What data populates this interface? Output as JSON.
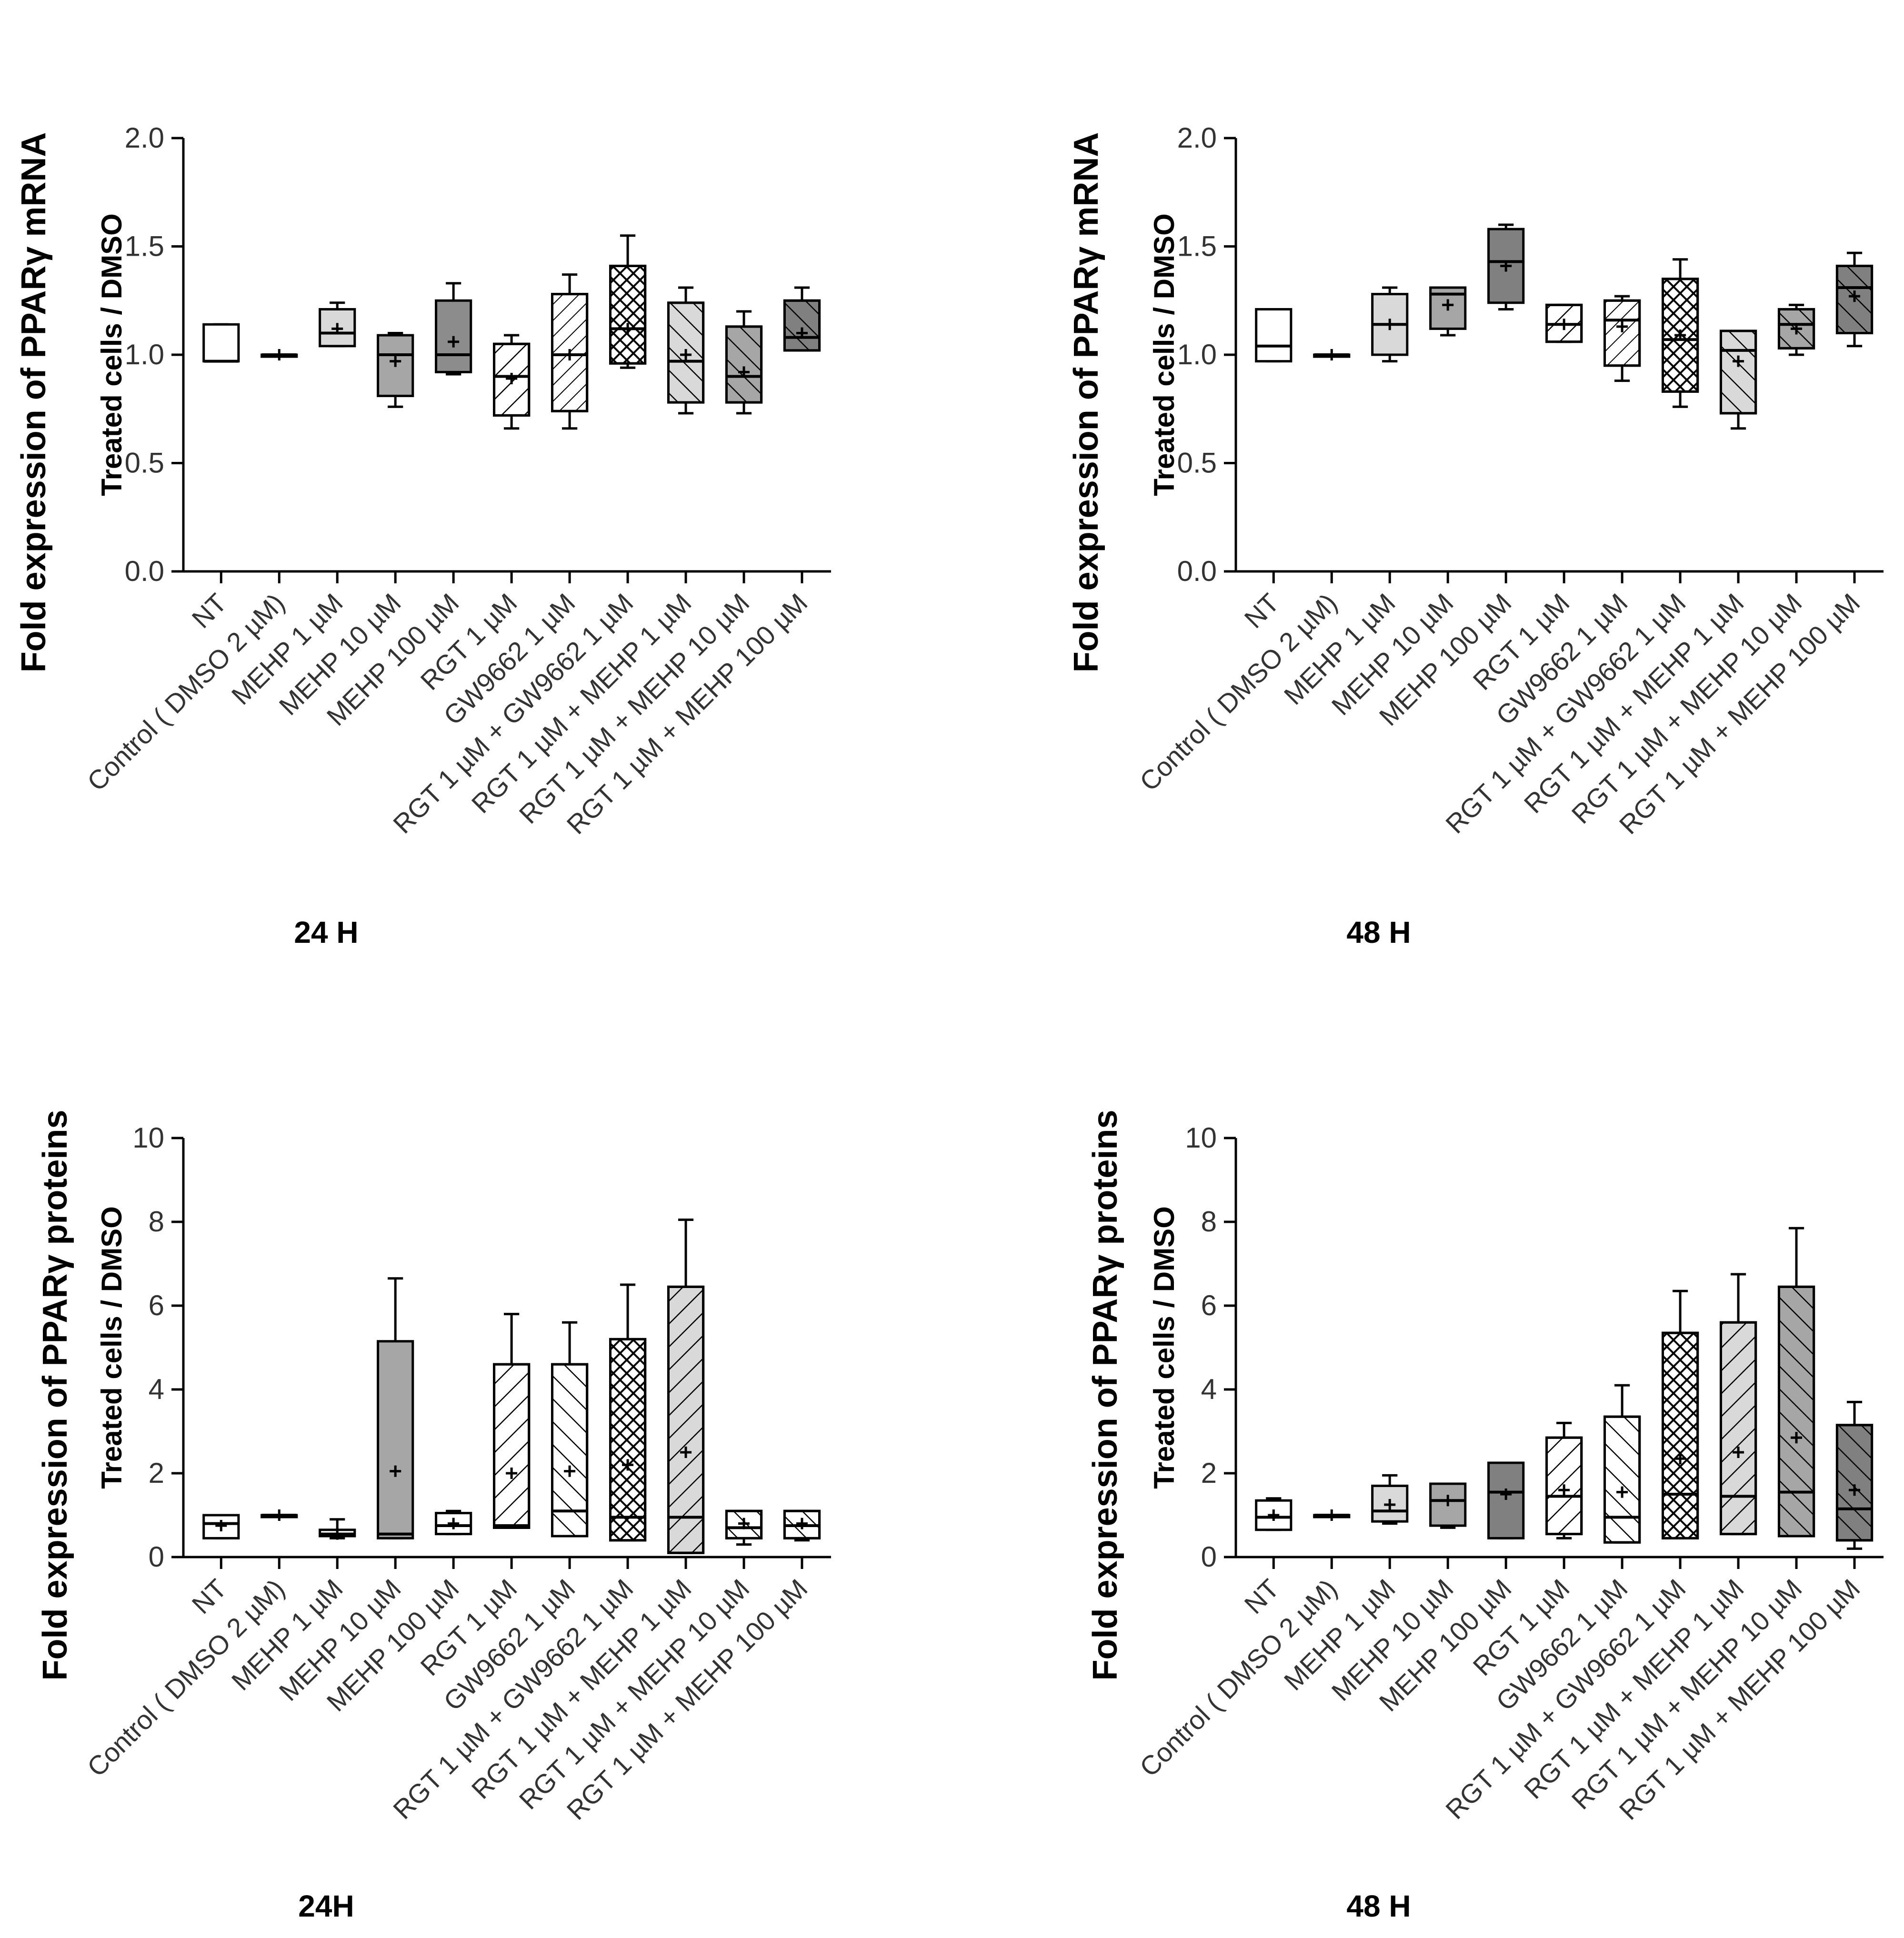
{
  "chart_data": [
    {
      "type": "box",
      "panel": "top-left",
      "ylabel": "Fold expression of PPARγ mRNA",
      "ylabel2": "Treated cells / DMSO",
      "xlabel": "24 H",
      "ylim": [
        0,
        2.0
      ],
      "yticks": [
        "0.0",
        "0.5",
        "1.0",
        "1.5",
        "2.0"
      ],
      "categories": [
        "NT",
        "Control ( DMSO 2 µM)",
        "MEHP 1 µM",
        "MEHP 10 µM",
        "MEHP 100 µM",
        "RGT 1 µM",
        "GW9662  1 µM",
        "RGT 1 µM + GW9662 1 µM",
        "RGT 1 µM + MEHP 1 µM",
        "RGT 1 µM + MEHP 10 µM",
        "RGT 1 µM + MEHP 100 µM"
      ],
      "boxes": [
        {
          "min": 0.97,
          "q1": 0.97,
          "median": 0.97,
          "q3": 1.14,
          "max": 1.14,
          "mean": null,
          "fill": "#ffffff",
          "pattern": "none"
        },
        {
          "min": 1.0,
          "q1": 1.0,
          "median": 1.0,
          "q3": 1.0,
          "max": 1.0,
          "mean": 1.0,
          "fill": "#ffffff",
          "pattern": "none"
        },
        {
          "min": 1.04,
          "q1": 1.04,
          "median": 1.1,
          "q3": 1.21,
          "max": 1.24,
          "mean": 1.12,
          "fill": "#d9d9d9",
          "pattern": "none"
        },
        {
          "min": 0.76,
          "q1": 0.81,
          "median": 1.0,
          "q3": 1.09,
          "max": 1.1,
          "mean": 0.97,
          "fill": "#a6a6a6",
          "pattern": "none"
        },
        {
          "min": 0.91,
          "q1": 0.92,
          "median": 1.0,
          "q3": 1.25,
          "max": 1.33,
          "mean": 1.06,
          "fill": "#8c8c8c",
          "pattern": "none"
        },
        {
          "min": 0.66,
          "q1": 0.72,
          "median": 0.9,
          "q3": 1.05,
          "max": 1.09,
          "mean": 0.89,
          "fill": "#ffffff",
          "pattern": "diag"
        },
        {
          "min": 0.66,
          "q1": 0.74,
          "median": 1.0,
          "q3": 1.28,
          "max": 1.37,
          "mean": 1.0,
          "fill": "#ffffff",
          "pattern": "diag-dense"
        },
        {
          "min": 0.94,
          "q1": 0.96,
          "median": 1.12,
          "q3": 1.41,
          "max": 1.55,
          "mean": 1.12,
          "fill": "#ffffff",
          "pattern": "cross"
        },
        {
          "min": 0.73,
          "q1": 0.78,
          "median": 0.97,
          "q3": 1.24,
          "max": 1.31,
          "mean": 1.0,
          "fill": "#d9d9d9",
          "pattern": "back"
        },
        {
          "min": 0.73,
          "q1": 0.78,
          "median": 0.9,
          "q3": 1.13,
          "max": 1.2,
          "mean": 0.92,
          "fill": "#a6a6a6",
          "pattern": "back"
        },
        {
          "min": 1.02,
          "q1": 1.02,
          "median": 1.08,
          "q3": 1.25,
          "max": 1.31,
          "mean": 1.1,
          "fill": "#808080",
          "pattern": "back"
        }
      ]
    },
    {
      "type": "box",
      "panel": "top-right",
      "ylabel": "Fold expression of PPARγ mRNA",
      "ylabel2": "Treated cells / DMSO",
      "xlabel": "48 H",
      "ylim": [
        0,
        2.0
      ],
      "yticks": [
        "0.0",
        "0.5",
        "1.0",
        "1.5",
        "2.0"
      ],
      "categories": [
        "NT",
        "Control ( DMSO 2 µM)",
        "MEHP 1 µM",
        "MEHP 10 µM",
        "MEHP 100 µM",
        "RGT 1 µM",
        "GW9662  1 µM",
        "RGT 1 µM + GW9662 1 µM",
        "RGT 1 µM + MEHP 1 µM",
        "RGT 1 µM + MEHP 10 µM",
        "RGT 1 µM + MEHP 100 µM"
      ],
      "boxes": [
        {
          "min": 0.97,
          "q1": 0.97,
          "median": 1.04,
          "q3": 1.21,
          "max": 1.21,
          "mean": null,
          "fill": "#ffffff",
          "pattern": "none"
        },
        {
          "min": 1.0,
          "q1": 1.0,
          "median": 1.0,
          "q3": 1.0,
          "max": 1.0,
          "mean": 1.0,
          "fill": "#ffffff",
          "pattern": "none"
        },
        {
          "min": 0.97,
          "q1": 1.0,
          "median": 1.14,
          "q3": 1.28,
          "max": 1.31,
          "mean": 1.14,
          "fill": "#d9d9d9",
          "pattern": "none"
        },
        {
          "min": 1.09,
          "q1": 1.12,
          "median": 1.28,
          "q3": 1.31,
          "max": 1.31,
          "mean": 1.23,
          "fill": "#a6a6a6",
          "pattern": "none"
        },
        {
          "min": 1.21,
          "q1": 1.24,
          "median": 1.43,
          "q3": 1.58,
          "max": 1.6,
          "mean": 1.41,
          "fill": "#808080",
          "pattern": "none"
        },
        {
          "min": 1.06,
          "q1": 1.06,
          "median": 1.14,
          "q3": 1.23,
          "max": 1.23,
          "mean": 1.14,
          "fill": "#ffffff",
          "pattern": "diag"
        },
        {
          "min": 0.88,
          "q1": 0.95,
          "median": 1.16,
          "q3": 1.25,
          "max": 1.27,
          "mean": 1.13,
          "fill": "#ffffff",
          "pattern": "diag-dense"
        },
        {
          "min": 0.76,
          "q1": 0.83,
          "median": 1.07,
          "q3": 1.35,
          "max": 1.44,
          "mean": 1.09,
          "fill": "#ffffff",
          "pattern": "cross"
        },
        {
          "min": 0.66,
          "q1": 0.73,
          "median": 1.02,
          "q3": 1.11,
          "max": 1.11,
          "mean": 0.97,
          "fill": "#d9d9d9",
          "pattern": "back"
        },
        {
          "min": 1.0,
          "q1": 1.03,
          "median": 1.14,
          "q3": 1.21,
          "max": 1.23,
          "mean": 1.12,
          "fill": "#a6a6a6",
          "pattern": "back"
        },
        {
          "min": 1.04,
          "q1": 1.1,
          "median": 1.31,
          "q3": 1.41,
          "max": 1.47,
          "mean": 1.27,
          "fill": "#808080",
          "pattern": "back"
        }
      ]
    },
    {
      "type": "box",
      "panel": "bottom-left",
      "ylabel": "Fold expression of PPARγ proteins",
      "ylabel2": "Treated cells / DMSO",
      "xlabel": "24H",
      "ylim": [
        0,
        10
      ],
      "yticks": [
        "0",
        "2",
        "4",
        "6",
        "8",
        "10"
      ],
      "categories": [
        "NT",
        "Control ( DMSO 2 µM)",
        "MEHP 1 µM",
        "MEHP 10 µM",
        "MEHP 100 µM",
        "RGT 1 µM",
        "GW9662  1 µM",
        "RGT 1 µM + GW9662 1 µM",
        "RGT 1 µM + MEHP 1 µM",
        "RGT 1 µM + MEHP 10 µM",
        "RGT 1 µM + MEHP 100 µM"
      ],
      "boxes": [
        {
          "min": 0.45,
          "q1": 0.45,
          "median": 0.8,
          "q3": 1.0,
          "max": 1.0,
          "mean": 0.75,
          "fill": "#ffffff",
          "pattern": "none"
        },
        {
          "min": 1.0,
          "q1": 1.0,
          "median": 1.0,
          "q3": 1.0,
          "max": 1.0,
          "mean": 1.0,
          "fill": "#ffffff",
          "pattern": "none"
        },
        {
          "min": 0.45,
          "q1": 0.5,
          "median": 0.55,
          "q3": 0.65,
          "max": 0.9,
          "mean": 0.55,
          "fill": "#ffffff",
          "pattern": "none"
        },
        {
          "min": 0.45,
          "q1": 0.45,
          "median": 0.55,
          "q3": 5.15,
          "max": 6.65,
          "mean": 2.05,
          "fill": "#a6a6a6",
          "pattern": "none"
        },
        {
          "min": 0.55,
          "q1": 0.55,
          "median": 0.75,
          "q3": 1.05,
          "max": 1.1,
          "mean": 0.8,
          "fill": "#ffffff",
          "pattern": "none"
        },
        {
          "min": 0.7,
          "q1": 0.7,
          "median": 0.75,
          "q3": 4.6,
          "max": 5.8,
          "mean": 2.0,
          "fill": "#ffffff",
          "pattern": "diag"
        },
        {
          "min": 0.5,
          "q1": 0.5,
          "median": 1.1,
          "q3": 4.6,
          "max": 5.6,
          "mean": 2.05,
          "fill": "#ffffff",
          "pattern": "back"
        },
        {
          "min": 0.4,
          "q1": 0.4,
          "median": 0.95,
          "q3": 5.2,
          "max": 6.5,
          "mean": 2.2,
          "fill": "#ffffff",
          "pattern": "cross"
        },
        {
          "min": 0.1,
          "q1": 0.1,
          "median": 0.95,
          "q3": 6.45,
          "max": 8.05,
          "mean": 2.5,
          "fill": "#d9d9d9",
          "pattern": "diag"
        },
        {
          "min": 0.3,
          "q1": 0.45,
          "median": 0.7,
          "q3": 1.1,
          "max": 1.1,
          "mean": 0.8,
          "fill": "#ffffff",
          "pattern": "back"
        },
        {
          "min": 0.4,
          "q1": 0.45,
          "median": 0.75,
          "q3": 1.1,
          "max": 1.1,
          "mean": 0.8,
          "fill": "#ffffff",
          "pattern": "back"
        }
      ]
    },
    {
      "type": "box",
      "panel": "bottom-right",
      "ylabel": "Fold expression of PPARγ proteins",
      "ylabel2": "Treated cells / DMSO",
      "xlabel": "48 H",
      "ylim": [
        0,
        10
      ],
      "yticks": [
        "0",
        "2",
        "4",
        "6",
        "8",
        "10"
      ],
      "categories": [
        "NT",
        "Control ( DMSO 2 µM)",
        "MEHP 1 µM",
        "MEHP 10 µM",
        "MEHP 100 µM",
        "RGT 1 µM",
        "GW9662  1 µM",
        "RGT 1 µM + GW9662 1 µM",
        "RGT 1 µM + MEHP 1 µM",
        "RGT 1 µM + MEHP 10 µM",
        "RGT 1 µM + MEHP 100 µM"
      ],
      "boxes": [
        {
          "min": 0.65,
          "q1": 0.65,
          "median": 0.95,
          "q3": 1.35,
          "max": 1.4,
          "mean": 1.0,
          "fill": "#ffffff",
          "pattern": "none"
        },
        {
          "min": 1.0,
          "q1": 1.0,
          "median": 1.0,
          "q3": 1.0,
          "max": 1.0,
          "mean": 1.0,
          "fill": "#ffffff",
          "pattern": "none"
        },
        {
          "min": 0.8,
          "q1": 0.85,
          "median": 1.1,
          "q3": 1.7,
          "max": 1.95,
          "mean": 1.25,
          "fill": "#d9d9d9",
          "pattern": "none"
        },
        {
          "min": 0.7,
          "q1": 0.75,
          "median": 1.35,
          "q3": 1.75,
          "max": 1.75,
          "mean": 1.35,
          "fill": "#a6a6a6",
          "pattern": "none"
        },
        {
          "min": 0.45,
          "q1": 0.45,
          "median": 1.55,
          "q3": 2.25,
          "max": 2.25,
          "mean": 1.5,
          "fill": "#808080",
          "pattern": "none"
        },
        {
          "min": 0.45,
          "q1": 0.55,
          "median": 1.45,
          "q3": 2.85,
          "max": 3.2,
          "mean": 1.6,
          "fill": "#ffffff",
          "pattern": "diag"
        },
        {
          "min": 0.35,
          "q1": 0.35,
          "median": 0.95,
          "q3": 3.35,
          "max": 4.1,
          "mean": 1.55,
          "fill": "#ffffff",
          "pattern": "back"
        },
        {
          "min": 0.45,
          "q1": 0.45,
          "median": 1.5,
          "q3": 5.35,
          "max": 6.35,
          "mean": 2.35,
          "fill": "#ffffff",
          "pattern": "cross"
        },
        {
          "min": 0.55,
          "q1": 0.55,
          "median": 1.45,
          "q3": 5.6,
          "max": 6.75,
          "mean": 2.5,
          "fill": "#d9d9d9",
          "pattern": "diag"
        },
        {
          "min": 0.5,
          "q1": 0.5,
          "median": 1.55,
          "q3": 6.45,
          "max": 7.85,
          "mean": 2.85,
          "fill": "#a6a6a6",
          "pattern": "back"
        },
        {
          "min": 0.2,
          "q1": 0.4,
          "median": 1.15,
          "q3": 3.15,
          "max": 3.7,
          "mean": 1.6,
          "fill": "#808080",
          "pattern": "back"
        }
      ]
    }
  ]
}
